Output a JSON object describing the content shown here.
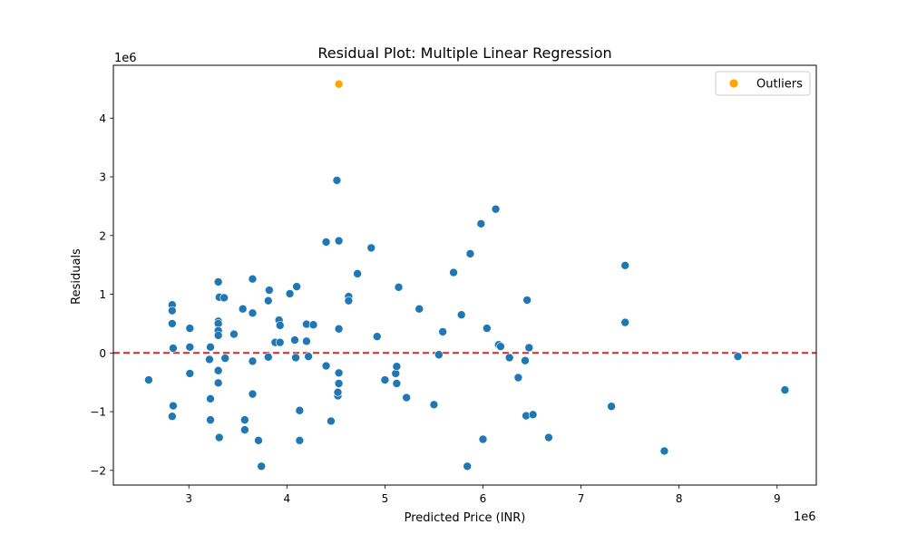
{
  "chart_data": {
    "type": "scatter",
    "title": "Residual Plot: Multiple Linear Regression",
    "xlabel": "Predicted Price (INR)",
    "ylabel": "Residuals",
    "x_offset_label": "1e6",
    "y_offset_label": "1e6",
    "xlim": [
      2.23,
      9.4
    ],
    "ylim": [
      -2.25,
      4.9
    ],
    "x_ticks": [
      3,
      4,
      5,
      6,
      7,
      8,
      9
    ],
    "x_tick_labels": [
      "3",
      "4",
      "5",
      "6",
      "7",
      "8",
      "9"
    ],
    "y_ticks": [
      -2,
      -1,
      0,
      1,
      2,
      3,
      4
    ],
    "y_tick_labels": [
      "−2",
      "−1",
      "0",
      "1",
      "2",
      "3",
      "4"
    ],
    "grid": false,
    "reference_line": {
      "y": 0,
      "color": "#d62728",
      "style": "dashed"
    },
    "legend": {
      "position": "top-right",
      "entries": [
        "Outliers"
      ]
    },
    "series": [
      {
        "color": "#1f77b4",
        "points": [
          [
            2.59,
            -0.46
          ],
          [
            2.83,
            0.82
          ],
          [
            2.83,
            0.72
          ],
          [
            2.83,
            0.5
          ],
          [
            2.84,
            0.08
          ],
          [
            2.84,
            -0.9
          ],
          [
            2.83,
            -1.08
          ],
          [
            3.01,
            0.42
          ],
          [
            3.01,
            0.1
          ],
          [
            3.01,
            -0.35
          ],
          [
            3.21,
            -0.11
          ],
          [
            3.22,
            0.1
          ],
          [
            3.22,
            -0.78
          ],
          [
            3.22,
            -1.14
          ],
          [
            3.3,
            1.21
          ],
          [
            3.31,
            0.95
          ],
          [
            3.3,
            0.54
          ],
          [
            3.3,
            0.5
          ],
          [
            3.3,
            0.38
          ],
          [
            3.3,
            0.3
          ],
          [
            3.3,
            -0.3
          ],
          [
            3.3,
            -0.51
          ],
          [
            3.31,
            -1.44
          ],
          [
            3.36,
            0.94
          ],
          [
            3.37,
            -0.09
          ],
          [
            3.46,
            0.32
          ],
          [
            3.55,
            0.75
          ],
          [
            3.57,
            -1.14
          ],
          [
            3.57,
            -1.31
          ],
          [
            3.65,
            1.26
          ],
          [
            3.65,
            0.68
          ],
          [
            3.65,
            -0.14
          ],
          [
            3.65,
            -0.7
          ],
          [
            3.71,
            -1.49
          ],
          [
            3.74,
            -1.93
          ],
          [
            3.81,
            0.89
          ],
          [
            3.81,
            -0.07
          ],
          [
            3.82,
            1.07
          ],
          [
            3.88,
            0.18
          ],
          [
            3.92,
            0.56
          ],
          [
            3.93,
            0.47
          ],
          [
            3.93,
            0.18
          ],
          [
            4.03,
            1.01
          ],
          [
            4.08,
            0.22
          ],
          [
            4.09,
            -0.08
          ],
          [
            4.1,
            1.13
          ],
          [
            4.13,
            -0.98
          ],
          [
            4.13,
            -1.49
          ],
          [
            4.2,
            0.49
          ],
          [
            4.2,
            0.2
          ],
          [
            4.22,
            -0.06
          ],
          [
            4.27,
            0.48
          ],
          [
            4.4,
            1.89
          ],
          [
            4.4,
            -0.22
          ],
          [
            4.45,
            -1.16
          ],
          [
            4.51,
            2.94
          ],
          [
            4.52,
            -0.73
          ],
          [
            4.52,
            -0.67
          ],
          [
            4.53,
            1.91
          ],
          [
            4.53,
            0.41
          ],
          [
            4.53,
            -0.34
          ],
          [
            4.53,
            -0.52
          ],
          [
            4.63,
            0.96
          ],
          [
            4.63,
            0.89
          ],
          [
            4.72,
            1.35
          ],
          [
            4.86,
            1.79
          ],
          [
            4.92,
            0.28
          ],
          [
            5.0,
            -0.46
          ],
          [
            5.11,
            -0.35
          ],
          [
            5.12,
            -0.52
          ],
          [
            5.12,
            -0.23
          ],
          [
            5.14,
            1.12
          ],
          [
            5.22,
            -0.76
          ],
          [
            5.35,
            0.75
          ],
          [
            5.5,
            -0.88
          ],
          [
            5.55,
            -0.03
          ],
          [
            5.59,
            0.36
          ],
          [
            5.7,
            1.37
          ],
          [
            5.78,
            0.65
          ],
          [
            5.84,
            -1.93
          ],
          [
            5.87,
            1.69
          ],
          [
            5.98,
            2.2
          ],
          [
            6.0,
            -1.47
          ],
          [
            6.04,
            0.42
          ],
          [
            6.13,
            2.45
          ],
          [
            6.16,
            0.14
          ],
          [
            6.18,
            0.11
          ],
          [
            6.27,
            -0.08
          ],
          [
            6.36,
            -0.42
          ],
          [
            6.43,
            -0.13
          ],
          [
            6.44,
            -1.07
          ],
          [
            6.45,
            0.9
          ],
          [
            6.47,
            0.09
          ],
          [
            6.51,
            -1.05
          ],
          [
            6.67,
            -1.44
          ],
          [
            7.31,
            -0.91
          ],
          [
            7.45,
            1.49
          ],
          [
            7.45,
            0.52
          ],
          [
            7.85,
            -1.67
          ],
          [
            8.6,
            -0.06
          ],
          [
            9.08,
            -0.63
          ]
        ]
      },
      {
        "name": "Outliers",
        "color": "#ffa500",
        "points": [
          [
            4.53,
            4.58
          ]
        ]
      }
    ]
  }
}
